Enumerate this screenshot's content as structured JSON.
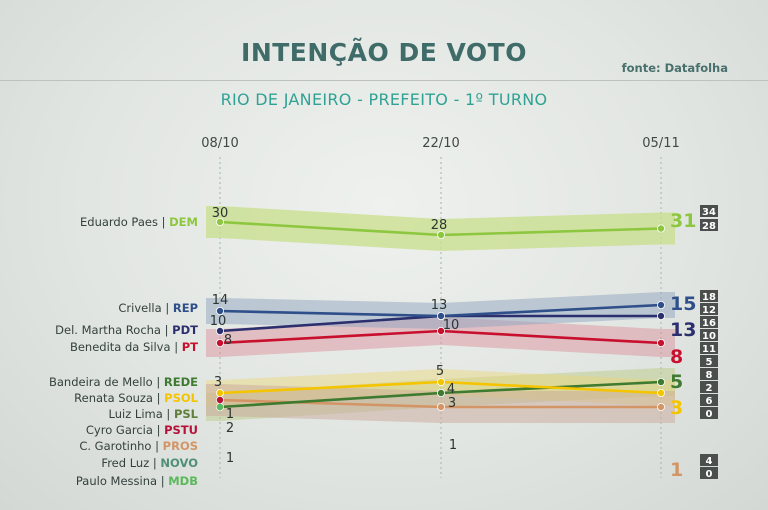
{
  "header": {
    "title": "INTENÇÃO DE VOTO",
    "source": "fonte: Datafolha",
    "subtitle": "RIO DE JANEIRO - PREFEITO - 1º TURNO"
  },
  "chart_data": {
    "type": "line",
    "title": "INTENÇÃO DE VOTO",
    "subtitle": "RIO DE JANEIRO - PREFEITO - 1º TURNO",
    "source": "fonte: Datafolha",
    "x": [
      "08/10",
      "22/10",
      "05/11"
    ],
    "series": [
      {
        "name": "Eduardo Paes",
        "party": "DEM",
        "color": "#8dc63f",
        "values": [
          30,
          28,
          31
        ],
        "range": [
          "34",
          "28"
        ]
      },
      {
        "name": "Crivella",
        "party": "REP",
        "color": "#2f4f8a",
        "values": [
          14,
          13,
          15
        ],
        "range": [
          "18",
          "12"
        ]
      },
      {
        "name": "Del. Martha Rocha",
        "party": "PDT",
        "color": "#2b2f6e",
        "values": [
          10,
          13,
          13
        ],
        "range": [
          "16",
          "10"
        ]
      },
      {
        "name": "Benedita da Silva",
        "party": "PT",
        "color": "#c8102e",
        "values": [
          8,
          10,
          8
        ],
        "range": [
          "11",
          "5"
        ]
      },
      {
        "name": "Bandeira de Mello",
        "party": "REDE",
        "color": "#3e7a2f",
        "values": [
          1,
          3,
          5
        ],
        "range": [
          "8",
          "2"
        ]
      },
      {
        "name": "Renata Souza",
        "party": "PSOL",
        "color": "#f5c400",
        "values": [
          3,
          5,
          3
        ],
        "range": [
          "6",
          "0"
        ]
      },
      {
        "name": "Luiz Lima",
        "party": "PSL",
        "color": "#5f7e3a",
        "values": [
          null,
          4,
          null
        ],
        "range": []
      },
      {
        "name": "Cyro Garcia",
        "party": "PSTU",
        "color": "#b5123a",
        "values": [
          2,
          null,
          null
        ],
        "range": []
      },
      {
        "name": "C. Garotinho",
        "party": "PROS",
        "color": "#d39566",
        "values": [
          2,
          1,
          1
        ],
        "range": [
          "4",
          "0"
        ]
      },
      {
        "name": "Fred Luz",
        "party": "NOVO",
        "color": "#4f8e79",
        "values": [
          1,
          null,
          null
        ],
        "range": []
      },
      {
        "name": "Paulo Messina",
        "party": "MDB",
        "color": "#5cb85c",
        "values": [
          1,
          null,
          null
        ],
        "range": []
      }
    ],
    "value_labels": {
      "d0": [
        "30",
        "14",
        "10",
        "8",
        "3",
        "1",
        "2",
        "1"
      ],
      "d1": [
        "28",
        "13",
        "10",
        "5",
        "4",
        "3",
        "1"
      ],
      "d2": [
        "31",
        "15",
        "13",
        "8",
        "5",
        "3",
        "1"
      ]
    }
  }
}
